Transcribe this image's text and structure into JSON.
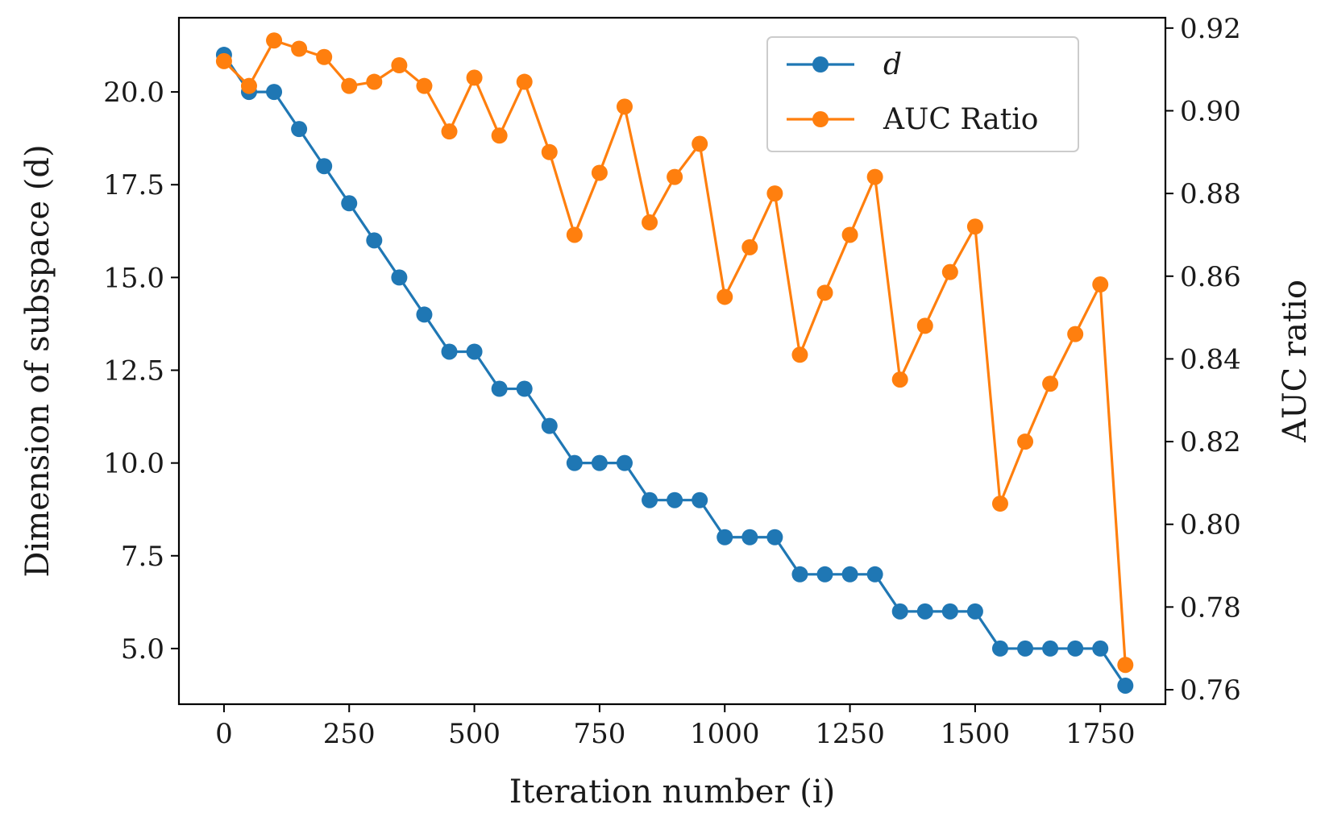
{
  "chart_data": {
    "type": "line",
    "title": "",
    "xlabel": "Iteration number (i)",
    "ylabel_left": "Dimension of subspace (d)",
    "ylabel_right": "AUC ratio",
    "xlim": [
      -90,
      1880
    ],
    "ylim_left": [
      3.5,
      22
    ],
    "ylim_right": [
      0.7565,
      0.9225
    ],
    "xticks": [
      0,
      250,
      500,
      750,
      1000,
      1250,
      1500,
      1750
    ],
    "xtick_labels": [
      "0",
      "250",
      "500",
      "750",
      "1000",
      "1250",
      "1500",
      "1750"
    ],
    "yticks_left": [
      5.0,
      7.5,
      10.0,
      12.5,
      15.0,
      17.5,
      20.0
    ],
    "ytick_labels_left": [
      "5.0",
      "7.5",
      "10.0",
      "12.5",
      "15.0",
      "17.5",
      "20.0"
    ],
    "yticks_right": [
      0.76,
      0.78,
      0.8,
      0.82,
      0.84,
      0.86,
      0.88,
      0.9,
      0.92
    ],
    "ytick_labels_right": [
      "0.76",
      "0.78",
      "0.80",
      "0.82",
      "0.84",
      "0.86",
      "0.88",
      "0.90",
      "0.92"
    ],
    "grid": false,
    "legend_position": "top-right",
    "x": [
      0,
      50,
      100,
      150,
      200,
      250,
      300,
      350,
      400,
      450,
      500,
      550,
      600,
      650,
      700,
      750,
      800,
      850,
      900,
      950,
      1000,
      1050,
      1100,
      1150,
      1200,
      1250,
      1300,
      1350,
      1400,
      1450,
      1500,
      1550,
      1600,
      1650,
      1700,
      1750,
      1800
    ],
    "series": [
      {
        "name": "d",
        "axis": "left",
        "color": "#1f77b4",
        "values": [
          21,
          20,
          20,
          19,
          18,
          17,
          16,
          15,
          14,
          13,
          13,
          12,
          12,
          11,
          10,
          10,
          10,
          9,
          9,
          9,
          8,
          8,
          8,
          7,
          7,
          7,
          7,
          6,
          6,
          6,
          6,
          5,
          5,
          5,
          5,
          5,
          4
        ]
      },
      {
        "name": "AUC Ratio",
        "axis": "right",
        "color": "#ff7f0e",
        "values": [
          0.912,
          0.906,
          0.917,
          0.915,
          0.913,
          0.906,
          0.907,
          0.911,
          0.906,
          0.895,
          0.908,
          0.894,
          0.907,
          0.89,
          0.87,
          0.885,
          0.901,
          0.873,
          0.884,
          0.892,
          0.855,
          0.867,
          0.88,
          0.841,
          0.856,
          0.87,
          0.884,
          0.835,
          0.848,
          0.861,
          0.872,
          0.805,
          0.82,
          0.834,
          0.846,
          0.858,
          0.766
        ]
      }
    ]
  }
}
